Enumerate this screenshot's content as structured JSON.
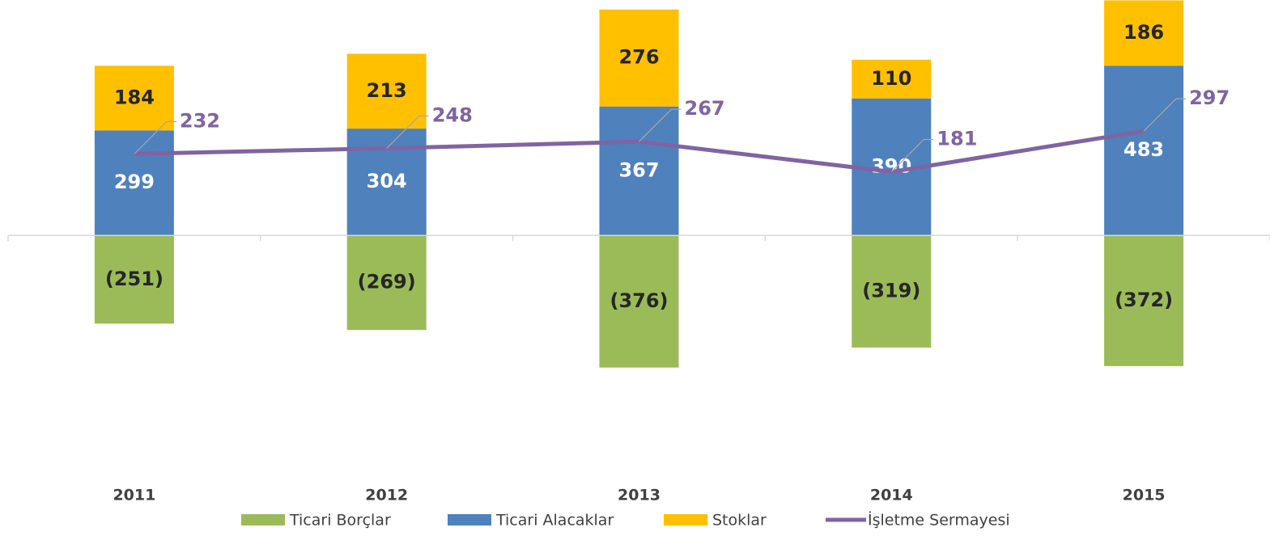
{
  "chart_data": {
    "type": "bar",
    "stacked": true,
    "categories": [
      "2011",
      "2012",
      "2013",
      "2014",
      "2015"
    ],
    "ylim": [
      -600,
      670
    ],
    "series": [
      {
        "name": "Ticari Borçlar",
        "type": "bar",
        "color": "#9BBB59",
        "values": [
          -251,
          -269,
          -376,
          -319,
          -372
        ],
        "value_labels": [
          "(251)",
          "(269)",
          "(376)",
          "(319)",
          "(372)"
        ],
        "label_color": "#262626"
      },
      {
        "name": "Ticari Alacaklar",
        "type": "bar",
        "color": "#4F81BD",
        "values": [
          299,
          304,
          367,
          390,
          483
        ],
        "label_color": "#FFFFFF"
      },
      {
        "name": "Stoklar",
        "type": "bar",
        "color": "#FFC000",
        "values": [
          184,
          213,
          276,
          110,
          186
        ],
        "label_color": "#262626"
      },
      {
        "name": "İşletme Sermayesi",
        "type": "line",
        "color": "#8064A2",
        "values": [
          232,
          248,
          267,
          181,
          297
        ],
        "label_color": "#8064A2"
      }
    ]
  }
}
